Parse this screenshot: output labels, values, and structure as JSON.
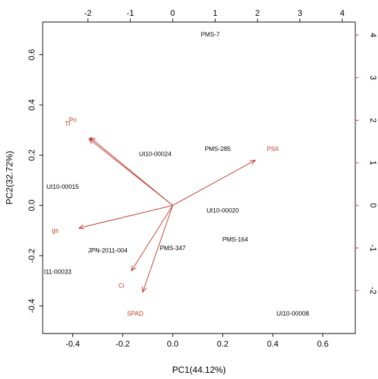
{
  "chart_data": {
    "type": "scatter",
    "subtype": "biplot",
    "title": "",
    "xlabel": "PC1(44.12%)",
    "ylabel": "PC2(32.72%)",
    "xlim": [
      -0.52,
      0.73
    ],
    "ylim": [
      -0.51,
      0.73
    ],
    "x_ticks": [
      "-0.4",
      "-0.2",
      "0.0",
      "0.2",
      "0.4",
      "0.6"
    ],
    "y_ticks": [
      "-0.4",
      "-0.2",
      "0.0",
      "0.2",
      "0.4",
      "0.6"
    ],
    "top_ticks": [
      "-2",
      "-1",
      "0",
      "1",
      "2",
      "3",
      "4"
    ],
    "right_ticks": [
      "-2",
      "-1",
      "0",
      "1",
      "2",
      "3",
      "4"
    ],
    "secondary_scale_ratio": 5.9,
    "grid": false,
    "label_color": "#000000",
    "loading_color": "#c0392b",
    "observations": [
      {
        "label": "PMS-7",
        "x": 0.15,
        "y": 0.68
      },
      {
        "label": "UI10-00024",
        "x": -0.07,
        "y": 0.205
      },
      {
        "label": "PMS-285",
        "x": 0.18,
        "y": 0.225
      },
      {
        "label": "UI10-00015",
        "x": -0.44,
        "y": 0.075
      },
      {
        "label": "UI10-00020",
        "x": 0.2,
        "y": -0.02
      },
      {
        "label": "PMS-164",
        "x": 0.25,
        "y": -0.135
      },
      {
        "label": "JPN-2011-004",
        "x": -0.26,
        "y": -0.18
      },
      {
        "label": "PMS-347",
        "x": 0.0,
        "y": -0.17
      },
      {
        "label": "I11-00033",
        "x": -0.46,
        "y": -0.265
      },
      {
        "label": "UI10-00008",
        "x": 0.48,
        "y": -0.43
      }
    ],
    "loadings": [
      {
        "label": "Pn",
        "x": -0.33,
        "y": 0.27,
        "label_x": -0.4,
        "label_y": 0.34
      },
      {
        "label": "Tr",
        "x": -0.335,
        "y": 0.265,
        "label_x": -0.42,
        "label_y": 0.325
      },
      {
        "label": "PSII",
        "x": 0.33,
        "y": 0.18,
        "label_x": 0.4,
        "label_y": 0.225
      },
      {
        "label": "gs",
        "x": -0.375,
        "y": -0.09,
        "label_x": -0.47,
        "label_y": -0.1
      },
      {
        "label": "Ci",
        "x": -0.165,
        "y": -0.26,
        "label_x": -0.205,
        "label_y": -0.32
      },
      {
        "label": "SPAD",
        "x": -0.12,
        "y": -0.345,
        "label_x": -0.15,
        "label_y": -0.43
      }
    ]
  }
}
